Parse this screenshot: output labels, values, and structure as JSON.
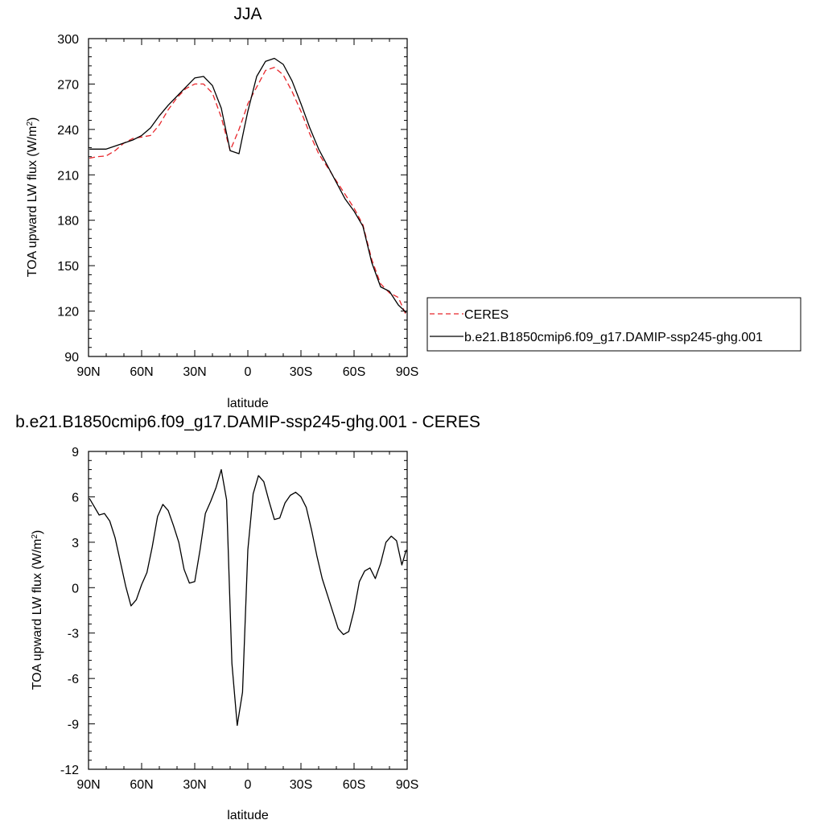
{
  "chart_data": [
    {
      "type": "line",
      "title": "JJA",
      "xlabel": "latitude",
      "ylabel": "TOA upward LW flux (W/m",
      "ylabel_sup": "2",
      "ylabel_close": ")",
      "xlim": [
        90,
        -90
      ],
      "ylim": [
        90,
        300
      ],
      "xticks": [
        90,
        60,
        30,
        0,
        -30,
        -60,
        -90
      ],
      "xtick_labels": [
        "90N",
        "60N",
        "30N",
        "0",
        "30S",
        "60S",
        "90S"
      ],
      "yticks": [
        90,
        120,
        150,
        180,
        210,
        240,
        270,
        300
      ],
      "ytick_labels": [
        "90",
        "120",
        "150",
        "180",
        "210",
        "240",
        "270",
        "300"
      ],
      "legend_position": "right",
      "series": [
        {
          "name": "CERES",
          "style": "dashed",
          "color": "#e8262b",
          "x": [
            89.5,
            85,
            80,
            75,
            70,
            65,
            60,
            55,
            50,
            45,
            40,
            35,
            30,
            25,
            20,
            15,
            10,
            5,
            2,
            0,
            -5,
            -10,
            -15,
            -20,
            -25,
            -30,
            -35,
            -40,
            -45,
            -50,
            -55,
            -60,
            -65,
            -70,
            -75,
            -80,
            -85,
            -89.5
          ],
          "y": [
            221,
            222,
            222.5,
            226,
            231,
            234,
            235,
            236,
            243,
            253,
            261,
            267,
            270,
            270,
            264,
            248,
            226,
            240,
            250,
            257,
            268,
            279,
            281,
            276,
            265,
            252,
            237,
            224,
            215,
            206,
            197,
            188,
            177,
            154,
            138,
            132,
            129,
            117
          ]
        },
        {
          "name": "b.e21.B1850cmip6.f09_g17.DAMIP-ssp245-ghg.001",
          "style": "solid",
          "color": "#000000",
          "x": [
            89.5,
            85,
            80,
            75,
            70,
            65,
            60,
            55,
            50,
            45,
            40,
            35,
            30,
            25,
            20,
            15,
            10,
            5,
            2,
            0,
            -5,
            -10,
            -15,
            -20,
            -25,
            -30,
            -35,
            -40,
            -45,
            -50,
            -55,
            -60,
            -65,
            -70,
            -75,
            -80,
            -85,
            -89.5
          ],
          "y": [
            227,
            227,
            227,
            229,
            231,
            233,
            236,
            241,
            249,
            256,
            262,
            268,
            274,
            275,
            269,
            254,
            226,
            224,
            241,
            252,
            275,
            285,
            287,
            283,
            272,
            257,
            241,
            227,
            216,
            205,
            194,
            186,
            176,
            152,
            136,
            133,
            124,
            119
          ]
        }
      ]
    },
    {
      "type": "line",
      "title": "b.e21.B1850cmip6.f09_g17.DAMIP-ssp245-ghg.001 - CERES",
      "xlabel": "latitude",
      "ylabel": "TOA upward LW flux (W/m",
      "ylabel_sup": "2",
      "ylabel_close": ")",
      "xlim": [
        90,
        -90
      ],
      "ylim": [
        -12,
        9
      ],
      "xticks": [
        90,
        60,
        30,
        0,
        -30,
        -60,
        -90
      ],
      "xtick_labels": [
        "90N",
        "60N",
        "30N",
        "0",
        "30S",
        "60S",
        "90S"
      ],
      "yticks": [
        -12,
        -9,
        -6,
        -3,
        0,
        3,
        6,
        9
      ],
      "ytick_labels": [
        "-12",
        "-9",
        "-6",
        "-3",
        "0",
        "3",
        "6",
        "9"
      ],
      "series": [
        {
          "style": "solid",
          "color": "#000000",
          "x": [
            89.5,
            84,
            81,
            78,
            75,
            72,
            69,
            66,
            63,
            60,
            57,
            54,
            51,
            48,
            45,
            42,
            39,
            36,
            33,
            30,
            27,
            24,
            21,
            18,
            15,
            12,
            9,
            6,
            3,
            0,
            -3,
            -6,
            -9,
            -12,
            -15,
            -18,
            -21,
            -24,
            -27,
            -30,
            -33,
            -36,
            -39,
            -42,
            -45,
            -48,
            -51,
            -54,
            -57,
            -60,
            -63,
            -66,
            -69,
            -72,
            -75,
            -78,
            -81,
            -84,
            -87,
            -89.5
          ],
          "y": [
            5.9,
            4.8,
            4.9,
            4.4,
            3.3,
            1.7,
            0.1,
            -1.2,
            -0.8,
            0.2,
            1.0,
            2.7,
            4.7,
            5.5,
            5.1,
            4.1,
            3.0,
            1.2,
            0.3,
            0.4,
            2.5,
            4.9,
            5.7,
            6.6,
            7.8,
            5.8,
            -5.0,
            -9.1,
            -6.9,
            2.5,
            6.2,
            7.4,
            7.0,
            5.7,
            4.5,
            4.6,
            5.6,
            6.1,
            6.3,
            6.0,
            5.3,
            3.8,
            2.1,
            0.6,
            -0.5,
            -1.6,
            -2.7,
            -3.1,
            -2.9,
            -1.5,
            0.4,
            1.1,
            1.3,
            0.6,
            1.6,
            3.0,
            3.4,
            3.1,
            1.5,
            2.5
          ]
        }
      ]
    }
  ]
}
